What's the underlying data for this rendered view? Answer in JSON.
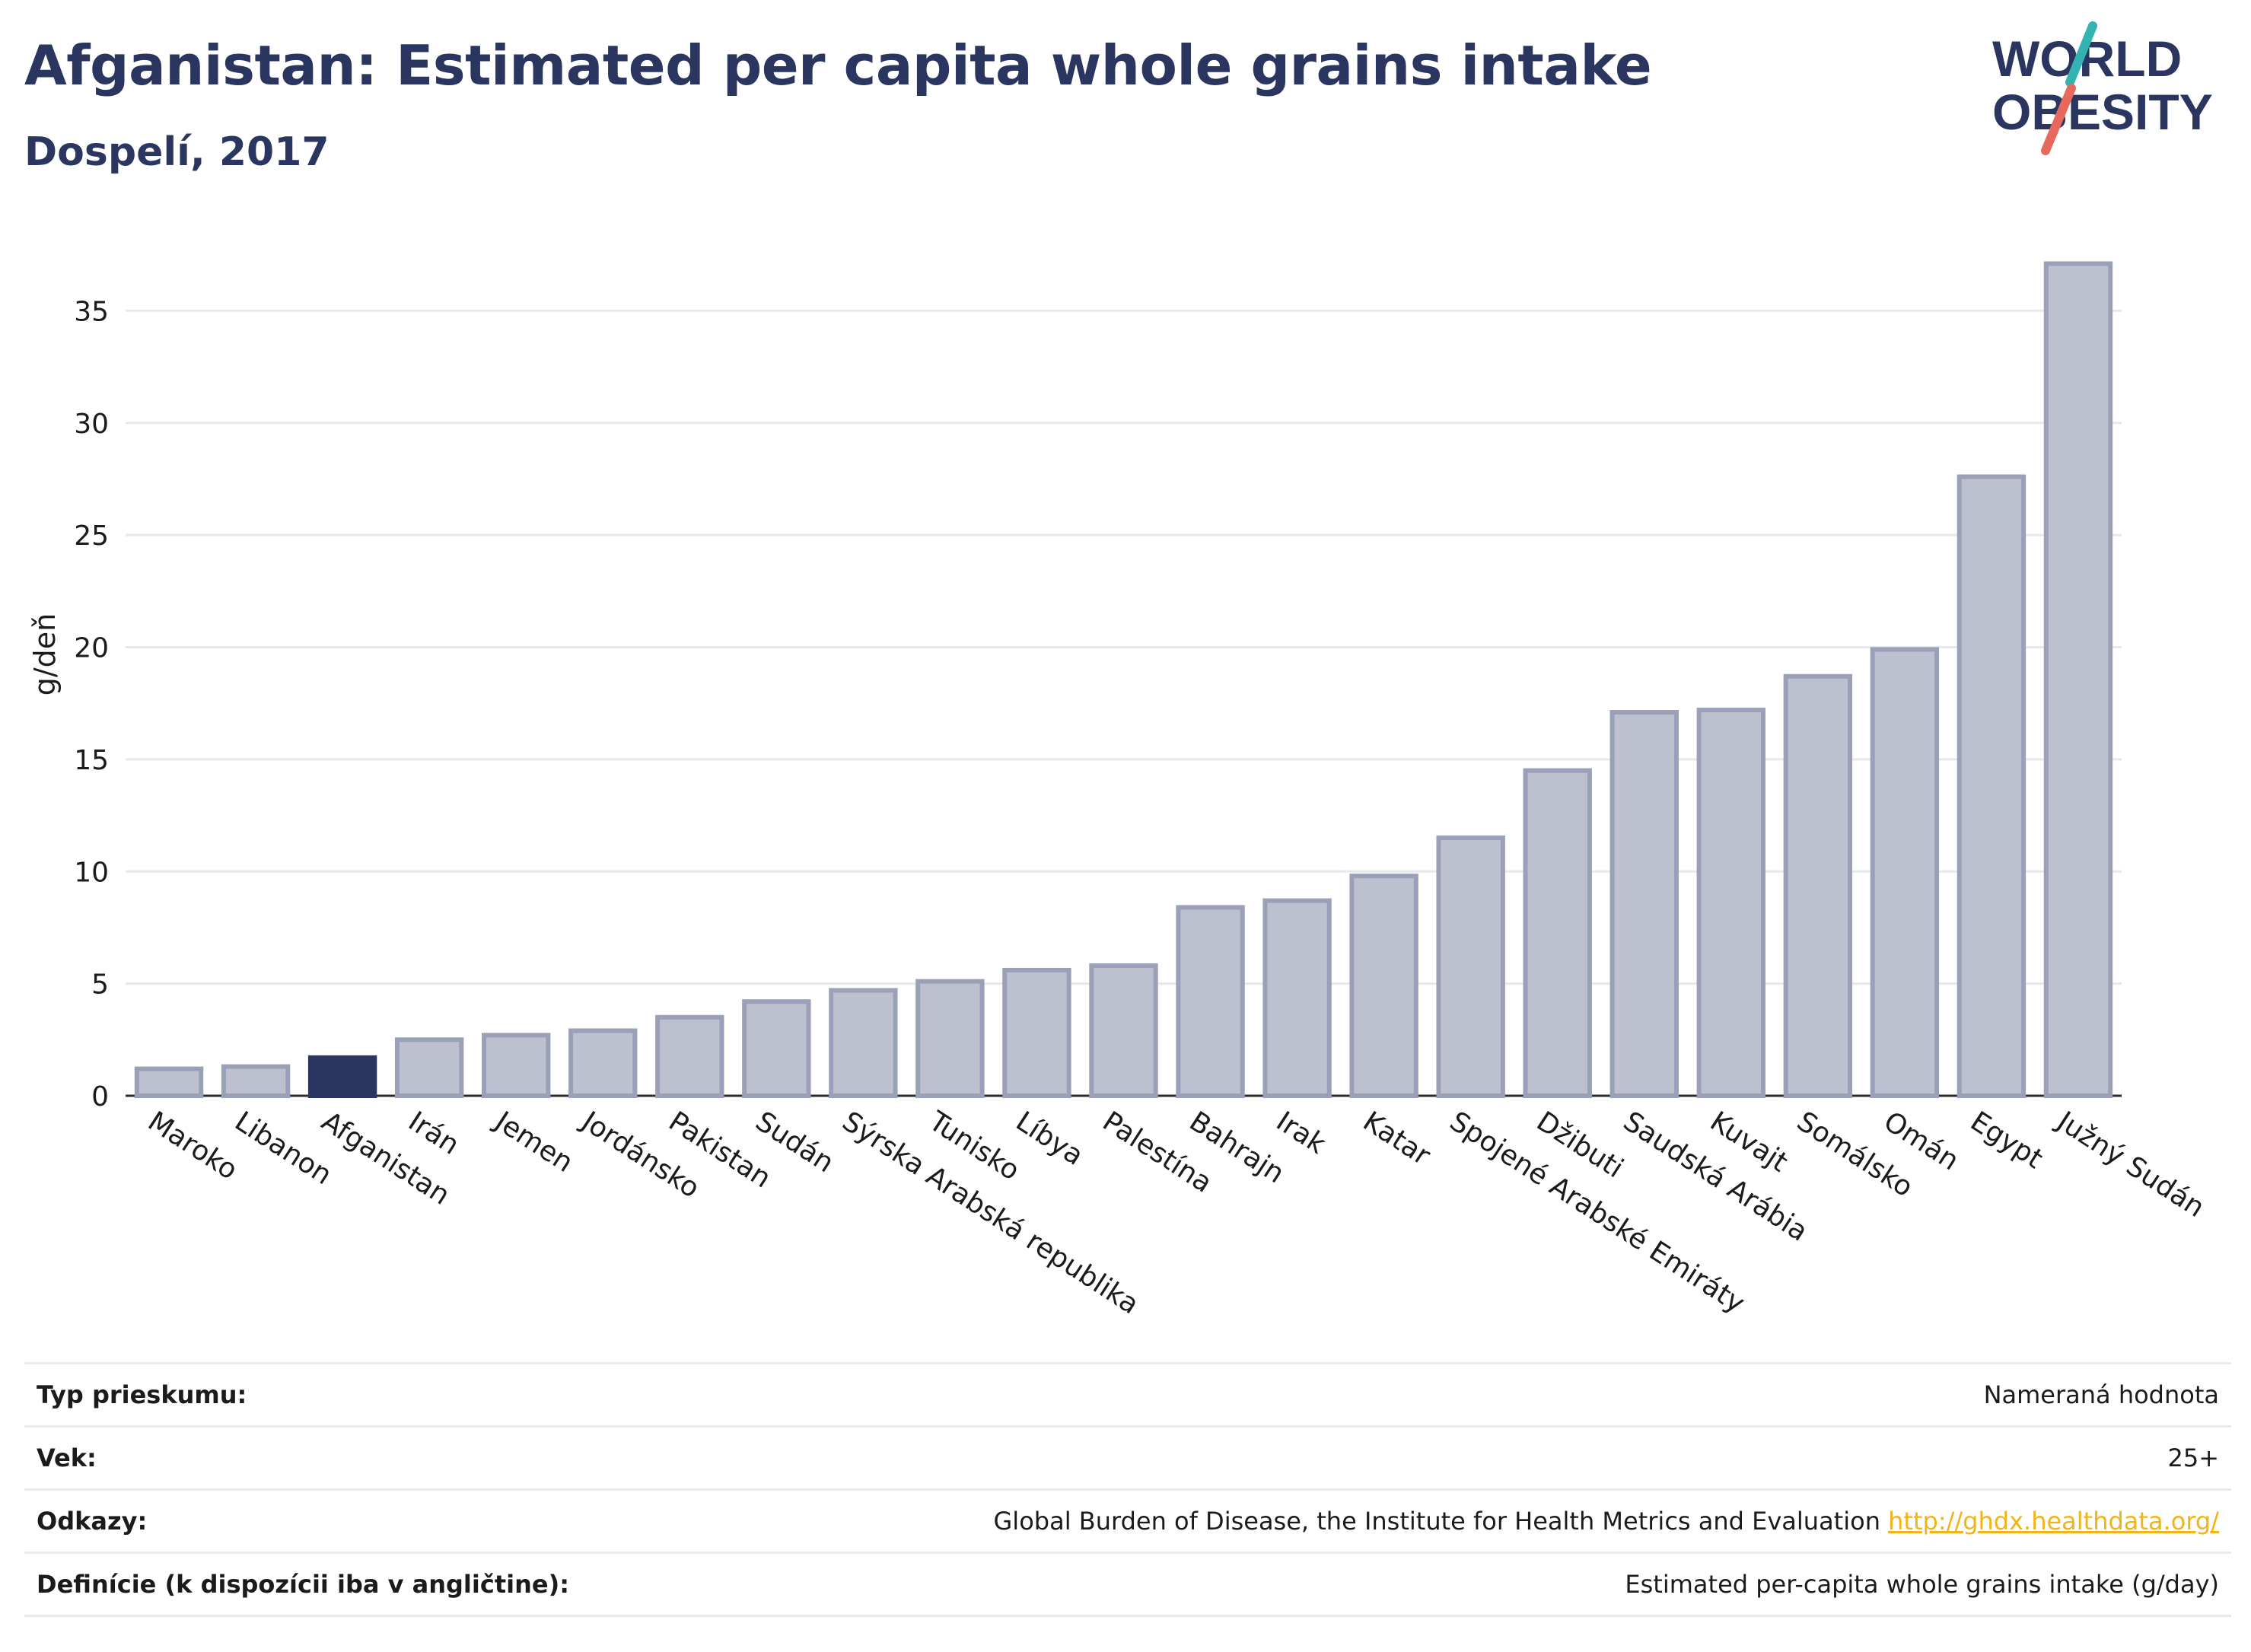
{
  "title": "Afganistan: Estimated per capita whole grains intake",
  "subtitle": "Dospelí, 2017",
  "logo": {
    "line1": "WORLD",
    "line2": "OBESITY",
    "colors": [
      "#2a3560",
      "#34b3b3",
      "#e7695d"
    ]
  },
  "colors": {
    "highlight": "#2a3560",
    "bar_fill": "#bdc1cf",
    "bar_stroke": "#9aa0b8",
    "grid": "#e6e8ee"
  },
  "chart_data": {
    "type": "bar",
    "ylabel": "g/deň",
    "ylim": [
      0,
      38
    ],
    "yticks": [
      0,
      5,
      10,
      15,
      20,
      25,
      30,
      35
    ],
    "grid": true,
    "highlight": "Afganistan",
    "categories": [
      "Maroko",
      "Libanon",
      "Afganistan",
      "Irán",
      "Jemen",
      "Jordánsko",
      "Pakistan",
      "Sudán",
      "Sýrska Arabská republika",
      "Tunisko",
      "Líbya",
      "Palestína",
      "Bahrajn",
      "Irak",
      "Katar",
      "Spojené Arabské Emiráty",
      "Džibuti",
      "Saudská Arábia",
      "Kuvajt",
      "Somálsko",
      "Omán",
      "Egypt",
      "Južný Sudán"
    ],
    "values": [
      1.2,
      1.3,
      1.7,
      2.5,
      2.7,
      2.9,
      3.5,
      4.2,
      4.7,
      5.1,
      5.6,
      5.8,
      8.4,
      8.7,
      9.8,
      11.5,
      14.5,
      17.1,
      17.2,
      18.7,
      19.9,
      27.6,
      37.1
    ]
  },
  "info": [
    {
      "key": "Typ prieskumu:",
      "value": "Nameraná hodnota"
    },
    {
      "key": "Vek:",
      "value": "25+"
    },
    {
      "key": "Odkazy:",
      "value": "Global Burden of Disease, the Institute for Health Metrics and Evaluation",
      "link": "http://ghdx.healthdata.org/"
    },
    {
      "key": "Definície (k dispozícii iba v angličtine):",
      "value": "Estimated per-capita whole grains intake (g/day)"
    }
  ]
}
